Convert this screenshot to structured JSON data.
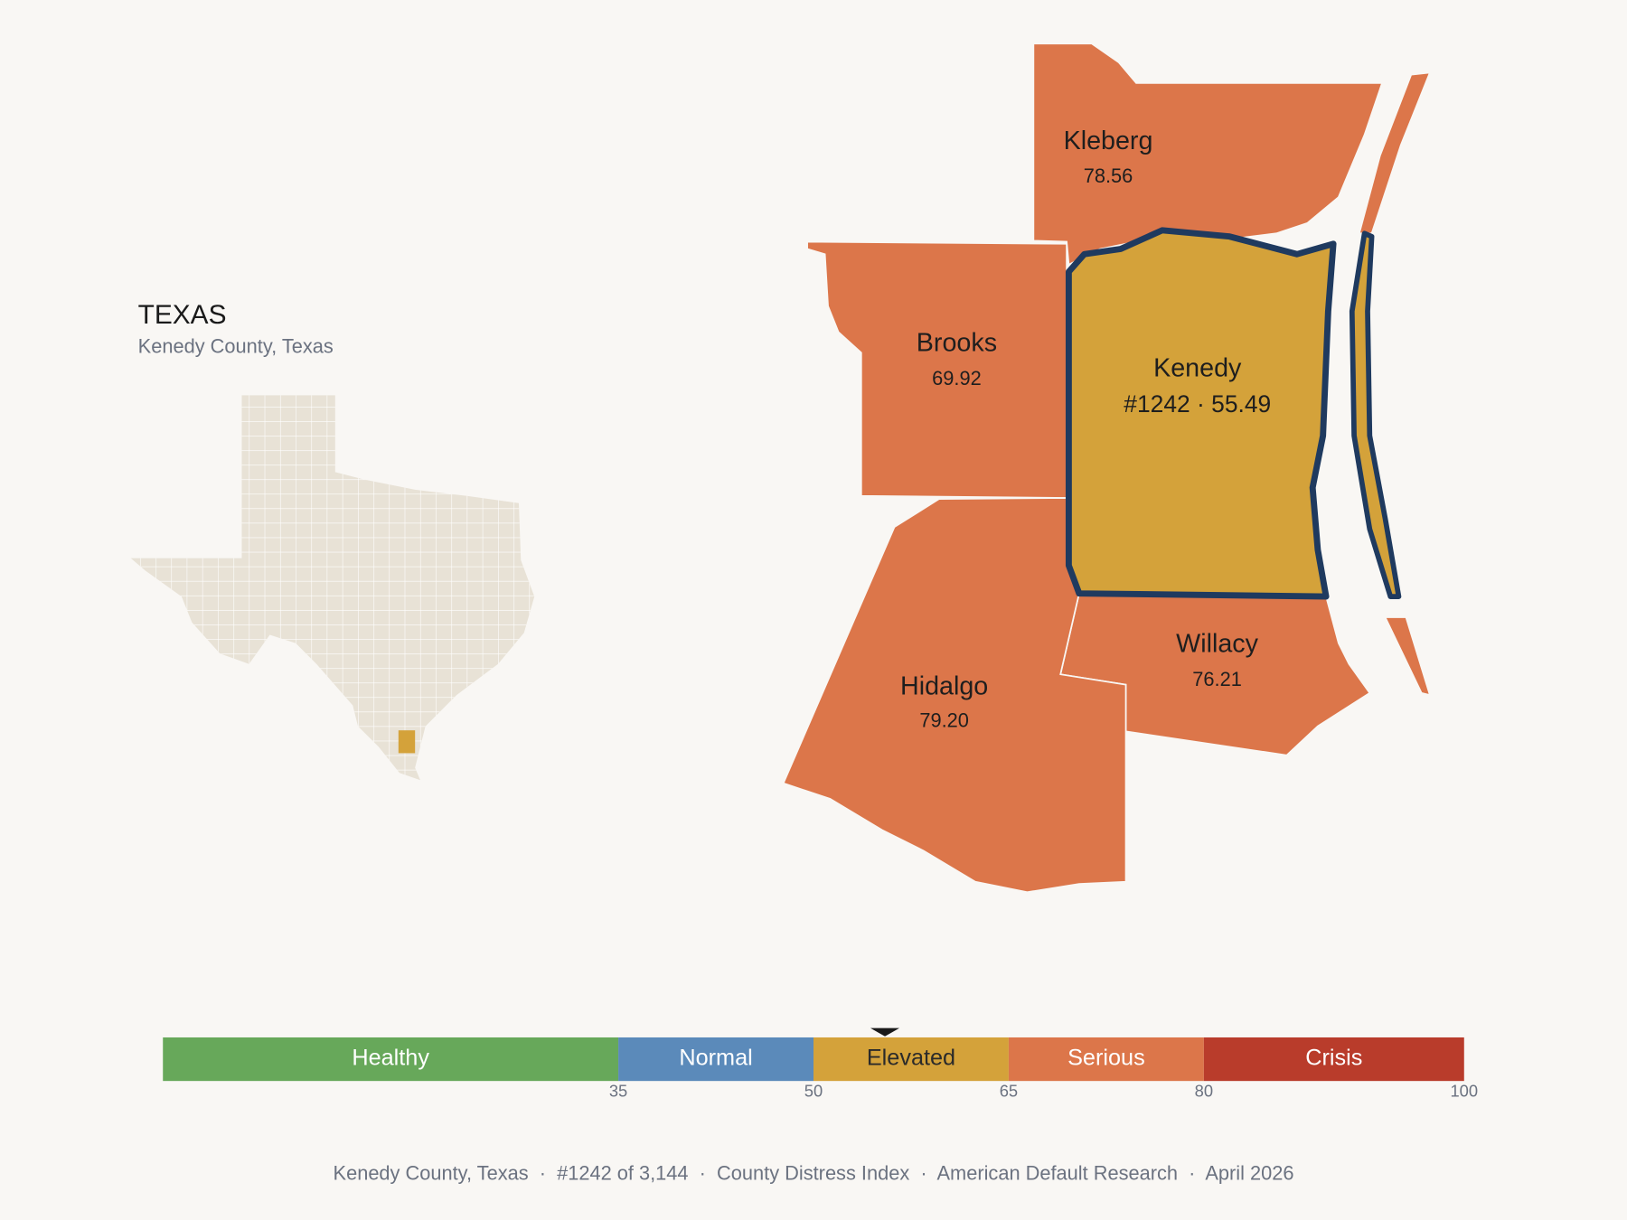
{
  "state_label": "TEXAS",
  "subtitle": "Kenedy County, Texas",
  "counties": [
    {
      "name": "Kleberg",
      "score": 78.56,
      "label": "78.56"
    },
    {
      "name": "Brooks",
      "score": 69.92,
      "label": "69.92"
    },
    {
      "name": "Kenedy",
      "score": 55.49,
      "label": "#1242 · 55.49"
    },
    {
      "name": "Willacy",
      "score": 76.21,
      "label": "76.21"
    },
    {
      "name": "Hidalgo",
      "score": 79.2,
      "label": "79.20"
    }
  ],
  "scale": {
    "xlim": [
      0,
      100
    ],
    "xticks": [
      35,
      50,
      65,
      80,
      100
    ],
    "bands": [
      {
        "name": "Healthy",
        "color": "#67a85a",
        "label_color": "#ffffff"
      },
      {
        "name": "Normal",
        "color": "#5b8aba",
        "label_color": "#ffffff"
      },
      {
        "name": "Elevated",
        "color": "#d4a23a",
        "label_color": "#2a2a2a"
      },
      {
        "name": "Serious",
        "color": "#dc764a",
        "label_color": "#ffffff"
      },
      {
        "name": "Crisis",
        "color": "#b93c2b",
        "label_color": "#ffffff"
      }
    ]
  },
  "footer": "Kenedy County, Texas  ·  #1242 of 3,144  ·  County Distress Index  ·  American Default Research  ·  April 2026"
}
